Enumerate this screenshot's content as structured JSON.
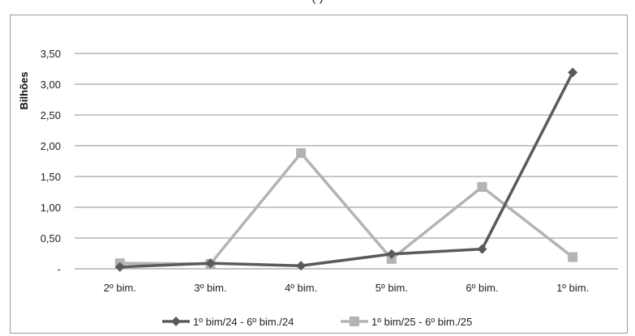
{
  "header": {
    "cropped_text": "(                                                              )"
  },
  "chart_data": {
    "type": "line",
    "ylabel": "Bilhões",
    "xlabel": "",
    "categories": [
      "2º bim.",
      "3º bim.",
      "4º bim.",
      "5º bim.",
      "6º bim.",
      "1º bim."
    ],
    "y_ticks": [
      "-",
      "0,50",
      "1,00",
      "1,50",
      "2,00",
      "2,50",
      "3,00",
      "3,50"
    ],
    "ylim": [
      0,
      3.5
    ],
    "grid": true,
    "legend_position": "bottom",
    "series": [
      {
        "name": "1º bim/24 - 6º bim./24",
        "values": [
          0.03,
          0.09,
          0.05,
          0.24,
          0.32,
          3.19
        ],
        "color": "#5a5a5a",
        "marker": "diamond"
      },
      {
        "name": "1º bim/25 - 6º bim./25",
        "values": [
          0.09,
          0.08,
          1.88,
          0.16,
          1.33,
          0.19
        ],
        "color": "#b3b3b3",
        "marker": "square"
      }
    ]
  }
}
